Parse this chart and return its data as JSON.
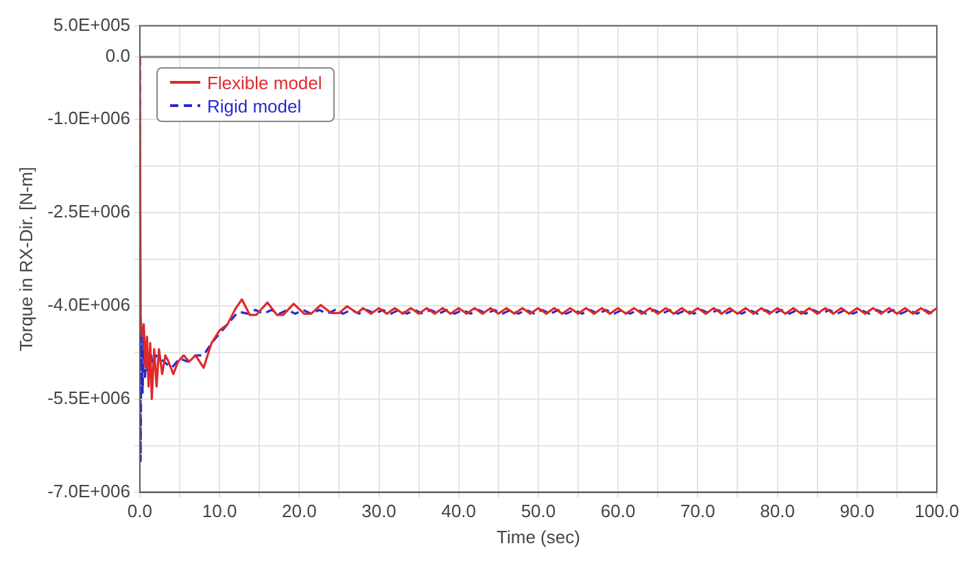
{
  "chart_data": {
    "type": "line",
    "xlabel": "Time (sec)",
    "ylabel": "Torque in RX-Dir. [N-m]",
    "xlim": [
      0,
      100
    ],
    "xticks": [
      {
        "value": 0,
        "label": "0.0"
      },
      {
        "value": 5,
        "label": null
      },
      {
        "value": 10,
        "label": "10.0"
      },
      {
        "value": 15,
        "label": null
      },
      {
        "value": 20,
        "label": "20.0"
      },
      {
        "value": 25,
        "label": null
      },
      {
        "value": 30,
        "label": "30.0"
      },
      {
        "value": 35,
        "label": null
      },
      {
        "value": 40,
        "label": "40.0"
      },
      {
        "value": 45,
        "label": null
      },
      {
        "value": 50,
        "label": "50.0"
      },
      {
        "value": 55,
        "label": null
      },
      {
        "value": 60,
        "label": "60.0"
      },
      {
        "value": 65,
        "label": null
      },
      {
        "value": 70,
        "label": "70.0"
      },
      {
        "value": 75,
        "label": null
      },
      {
        "value": 80,
        "label": "80.0"
      },
      {
        "value": 85,
        "label": null
      },
      {
        "value": 90,
        "label": "90.0"
      },
      {
        "value": 95,
        "label": null
      },
      {
        "value": 100,
        "label": "100.0"
      }
    ],
    "ylim": [
      -7000000,
      500000
    ],
    "yticks": [
      {
        "value": 500000,
        "label": "5.0E+005"
      },
      {
        "value": 0,
        "label": "0.0"
      },
      {
        "value": -1000000,
        "label": "-1.0E+006"
      },
      {
        "value": -1750000,
        "label": null
      },
      {
        "value": -2500000,
        "label": "-2.5E+006"
      },
      {
        "value": -3250000,
        "label": null
      },
      {
        "value": -4000000,
        "label": "-4.0E+006"
      },
      {
        "value": -4750000,
        "label": null
      },
      {
        "value": -5500000,
        "label": "-5.5E+006"
      },
      {
        "value": -6250000,
        "label": null
      },
      {
        "value": -7000000,
        "label": "-7.0E+006"
      }
    ],
    "grid": true,
    "legend": "top left",
    "marker": "none",
    "ref_lines": [
      {
        "axis": "y",
        "value": 0,
        "color": "#808080"
      }
    ],
    "series": [
      {
        "name": "Flexible model",
        "color": "#e02828",
        "line_style": "solid",
        "x": [
          0,
          0.1,
          0.3,
          0.5,
          0.7,
          0.9,
          1.1,
          1.3,
          1.5,
          1.8,
          2.1,
          2.4,
          2.8,
          3.2,
          3.6,
          4.2,
          4.8,
          5.5,
          6.2,
          7,
          8,
          9,
          10,
          11,
          12,
          12.8,
          13.8,
          14.6,
          16,
          17.2,
          18,
          19.3,
          20.6,
          21.5,
          22.7,
          24,
          25,
          26,
          27.3,
          28,
          29,
          30,
          31,
          32,
          33,
          34,
          35,
          36,
          37,
          38,
          39,
          40,
          41,
          42,
          43,
          44,
          45,
          46,
          47,
          48,
          49,
          50,
          51,
          52,
          53,
          54,
          55,
          56,
          57,
          58,
          59,
          60,
          61,
          62,
          63,
          64,
          65,
          66,
          67,
          68,
          69,
          70,
          71,
          72,
          73,
          74,
          75,
          76,
          77,
          78,
          79,
          80,
          81,
          82,
          83,
          84,
          85,
          86,
          87,
          88,
          89,
          90,
          91,
          92,
          93,
          94,
          95,
          96,
          97,
          98,
          99,
          100
        ],
        "values": [
          0,
          -4200000.0,
          -4500000.0,
          -4300000.0,
          -5000000.0,
          -4500000.0,
          -5300000.0,
          -4600000.0,
          -5500000.0,
          -4700000.0,
          -5300000.0,
          -4700000.0,
          -5100000.0,
          -4800000.0,
          -4900000.0,
          -5100000.0,
          -4900000.0,
          -4800000.0,
          -4900000.0,
          -4800000.0,
          -5000000.0,
          -4600000.0,
          -4400000.0,
          -4300000.0,
          -4050000.0,
          -3900000.0,
          -4150000.0,
          -4150000.0,
          -3950000.0,
          -4150000.0,
          -4150000.0,
          -3970000.0,
          -4130000.0,
          -4130000.0,
          -3990000.0,
          -4120000.0,
          -4120000.0,
          -4010000.0,
          -4120000.0,
          -4040000.0,
          -4130000.0,
          -4040000.0,
          -4130000.0,
          -4040000.0,
          -4130000.0,
          -4040000.0,
          -4130000.0,
          -4040000.0,
          -4130000.0,
          -4040000.0,
          -4130000.0,
          -4040000.0,
          -4130000.0,
          -4040000.0,
          -4130000.0,
          -4040000.0,
          -4130000.0,
          -4040000.0,
          -4130000.0,
          -4040000.0,
          -4130000.0,
          -4040000.0,
          -4130000.0,
          -4040000.0,
          -4130000.0,
          -4040000.0,
          -4130000.0,
          -4040000.0,
          -4130000.0,
          -4040000.0,
          -4130000.0,
          -4040000.0,
          -4130000.0,
          -4040000.0,
          -4130000.0,
          -4040000.0,
          -4130000.0,
          -4040000.0,
          -4130000.0,
          -4040000.0,
          -4130000.0,
          -4040000.0,
          -4130000.0,
          -4040000.0,
          -4130000.0,
          -4040000.0,
          -4130000.0,
          -4040000.0,
          -4130000.0,
          -4040000.0,
          -4130000.0,
          -4040000.0,
          -4130000.0,
          -4040000.0,
          -4130000.0,
          -4040000.0,
          -4130000.0,
          -4040000.0,
          -4130000.0,
          -4040000.0,
          -4130000.0,
          -4040000.0,
          -4130000.0,
          -4040000.0,
          -4130000.0,
          -4040000.0,
          -4130000.0,
          -4040000.0,
          -4130000.0,
          -4040000.0,
          -4130000.0,
          -4040000.0
        ]
      },
      {
        "name": "Rigid model",
        "color": "#2828d0",
        "line_style": "dashed",
        "x": [
          0,
          0.1,
          0.2,
          0.35,
          0.5,
          0.65,
          0.8,
          1,
          1.3,
          1.6,
          2,
          3,
          4,
          5,
          6,
          7,
          8,
          9,
          10,
          11,
          12,
          12.5,
          13.5,
          14.5,
          15.5,
          16.5,
          17.5,
          18.5,
          19.5,
          20.5,
          21.5,
          22.5,
          23.5,
          24.5,
          25.5,
          26.5,
          27.5,
          28.5,
          29.5,
          30.5,
          31.5,
          32.5,
          33.5,
          34.5,
          35.5,
          36.5,
          37.5,
          38.5,
          39.5,
          40.5,
          41.5,
          42.5,
          43.5,
          44.5,
          45.5,
          46.5,
          47.5,
          48.5,
          49.5,
          50.5,
          51.5,
          52.5,
          53.5,
          54.5,
          55.5,
          56.5,
          57.5,
          58.5,
          59.5,
          60.5,
          61.5,
          62.5,
          63.5,
          64.5,
          65.5,
          66.5,
          67.5,
          68.5,
          69.5,
          70.5,
          71.5,
          72.5,
          73.5,
          74.5,
          75.5,
          76.5,
          77.5,
          78.5,
          79.5,
          80.5,
          81.5,
          82.5,
          83.5,
          84.5,
          85.5,
          86.5,
          87.5,
          88.5,
          89.5,
          90.5,
          91.5,
          92.5,
          93.5,
          94.5,
          95.5,
          96.5,
          97.5,
          98.5,
          99.5,
          100
        ],
        "values": [
          0,
          -6500000.0,
          -4400000.0,
          -5400000.0,
          -4500000.0,
          -5200000.0,
          -4600000.0,
          -5100000.0,
          -4700000.0,
          -4950000.0,
          -4800000.0,
          -4900000.0,
          -5000000.0,
          -4850000.0,
          -4900000.0,
          -4800000.0,
          -4800000.0,
          -4600000.0,
          -4450000.0,
          -4300000.0,
          -4150000.0,
          -4100000.0,
          -4130000.0,
          -4070000.0,
          -4130000.0,
          -4070000.0,
          -4130000.0,
          -4070000.0,
          -4130000.0,
          -4070000.0,
          -4130000.0,
          -4070000.0,
          -4130000.0,
          -4070000.0,
          -4130000.0,
          -4070000.0,
          -4130000.0,
          -4070000.0,
          -4130000.0,
          -4070000.0,
          -4130000.0,
          -4070000.0,
          -4130000.0,
          -4070000.0,
          -4130000.0,
          -4070000.0,
          -4130000.0,
          -4070000.0,
          -4130000.0,
          -4070000.0,
          -4130000.0,
          -4070000.0,
          -4130000.0,
          -4070000.0,
          -4130000.0,
          -4070000.0,
          -4130000.0,
          -4070000.0,
          -4130000.0,
          -4070000.0,
          -4130000.0,
          -4070000.0,
          -4130000.0,
          -4070000.0,
          -4130000.0,
          -4070000.0,
          -4130000.0,
          -4070000.0,
          -4130000.0,
          -4070000.0,
          -4130000.0,
          -4070000.0,
          -4130000.0,
          -4070000.0,
          -4130000.0,
          -4070000.0,
          -4130000.0,
          -4070000.0,
          -4130000.0,
          -4070000.0,
          -4130000.0,
          -4070000.0,
          -4130000.0,
          -4070000.0,
          -4130000.0,
          -4070000.0,
          -4130000.0,
          -4070000.0,
          -4130000.0,
          -4070000.0,
          -4130000.0,
          -4070000.0,
          -4130000.0,
          -4070000.0,
          -4130000.0,
          -4070000.0,
          -4130000.0,
          -4070000.0,
          -4130000.0,
          -4070000.0,
          -4130000.0,
          -4070000.0,
          -4130000.0,
          -4070000.0,
          -4130000.0,
          -4070000.0,
          -4130000.0,
          -4070000.0,
          -4130000.0,
          -4100000.0
        ]
      }
    ]
  }
}
